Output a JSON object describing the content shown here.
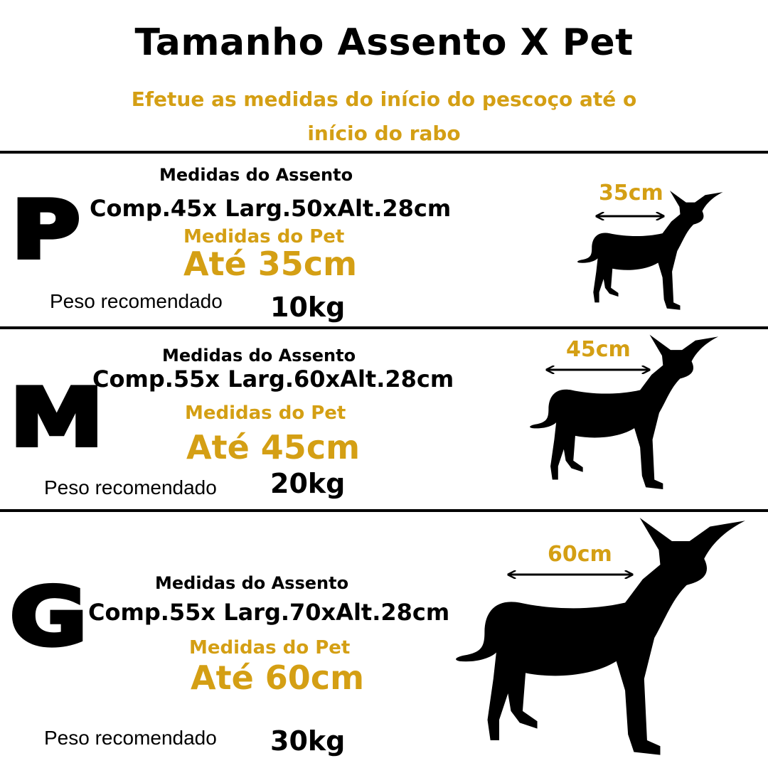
{
  "header": {
    "title": "Tamanho Assento X Pet",
    "subtitle": "Efetue as medidas do início do pescoço até o início do rabo"
  },
  "colors": {
    "accent": "#d49f14",
    "text": "#000000",
    "background": "#ffffff"
  },
  "sizes": [
    {
      "letter": "P",
      "seat_label": "Medidas do Assento",
      "seat_dims": "Comp.45x Larg.50xAlt.28cm",
      "pet_label": "Medidas do Pet",
      "pet_size": "Até 35cm",
      "weight_label": "Peso recomendado",
      "weight_value": "10kg",
      "measure_label": "35cm",
      "icon": "dog-silhouette-icon"
    },
    {
      "letter": "M",
      "seat_label": "Medidas do Assento",
      "seat_dims": "Comp.55x Larg.60xAlt.28cm",
      "pet_label": "Medidas do Pet",
      "pet_size": "Até 45cm",
      "weight_label": "Peso recomendado",
      "weight_value": "20kg",
      "measure_label": "45cm",
      "icon": "dog-silhouette-icon"
    },
    {
      "letter": "G",
      "seat_label": "Medidas do Assento",
      "seat_dims": "Comp.55x Larg.70xAlt.28cm",
      "pet_label": "Medidas do Pet",
      "pet_size": "Até 60cm",
      "weight_label": "Peso recomendado",
      "weight_value": "30kg",
      "measure_label": "60cm",
      "icon": "dog-silhouette-icon"
    }
  ]
}
